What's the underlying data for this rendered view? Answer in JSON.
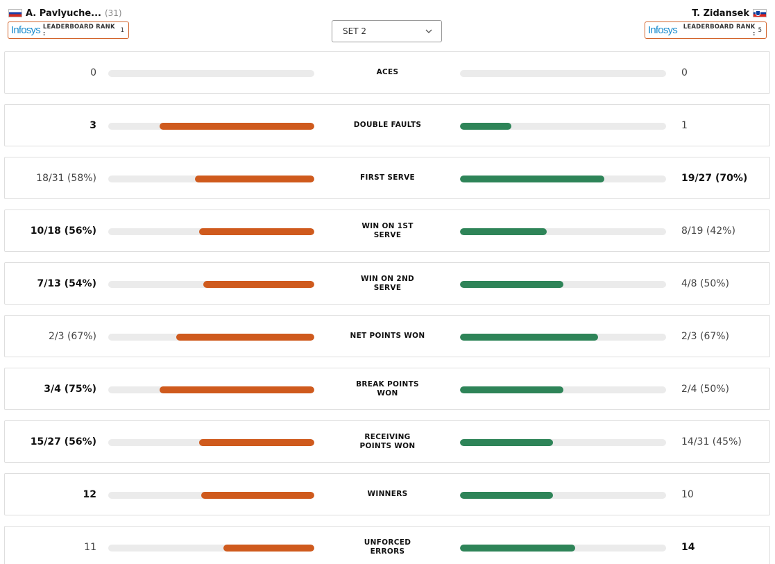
{
  "players": {
    "left": {
      "name": "A. Pavlyuche...",
      "seed": "(31)",
      "flag": "russia-flag",
      "brand": "Infosys",
      "rank_label": "LEADERBOARD RANK :",
      "rank_value": "1"
    },
    "right": {
      "name": "T. Zidansek",
      "flag": "slovenia-flag",
      "brand": "Infosys",
      "rank_label": "LEADERBOARD RANK :",
      "rank_value": "5"
    }
  },
  "set_selector": {
    "selected": "SET 2"
  },
  "colors": {
    "left_bar": "#cf5a1d",
    "right_bar": "#2e8458",
    "track": "#ebebeb",
    "rank_border": "#d2632a",
    "brand": "#1b8ccd"
  },
  "stats": [
    {
      "label": "ACES",
      "left": "0",
      "right": "0",
      "left_fill": 0.0,
      "right_fill": 0.0,
      "bold": "none"
    },
    {
      "label": "DOUBLE FAULTS",
      "left": "3",
      "right": "1",
      "left_fill": 0.75,
      "right_fill": 0.25,
      "bold": "left"
    },
    {
      "label": "FIRST SERVE",
      "left": "18/31 (58%)",
      "right": "19/27 (70%)",
      "left_fill": 0.58,
      "right_fill": 0.7,
      "bold": "right"
    },
    {
      "label": "WIN ON 1ST SERVE",
      "left": "10/18 (56%)",
      "right": "8/19 (42%)",
      "left_fill": 0.56,
      "right_fill": 0.42,
      "bold": "left"
    },
    {
      "label": "WIN ON 2ND SERVE",
      "left": "7/13 (54%)",
      "right": "4/8 (50%)",
      "left_fill": 0.54,
      "right_fill": 0.5,
      "bold": "left"
    },
    {
      "label": "NET POINTS WON",
      "left": "2/3 (67%)",
      "right": "2/3 (67%)",
      "left_fill": 0.67,
      "right_fill": 0.67,
      "bold": "none"
    },
    {
      "label": "BREAK POINTS WON",
      "left": "3/4 (75%)",
      "right": "2/4 (50%)",
      "left_fill": 0.75,
      "right_fill": 0.5,
      "bold": "left"
    },
    {
      "label": "RECEIVING POINTS WON",
      "left": "15/27 (56%)",
      "right": "14/31 (45%)",
      "left_fill": 0.56,
      "right_fill": 0.45,
      "bold": "left"
    },
    {
      "label": "WINNERS",
      "left": "12",
      "right": "10",
      "left_fill": 0.55,
      "right_fill": 0.45,
      "bold": "left"
    },
    {
      "label": "UNFORCED ERRORS",
      "left": "11",
      "right": "14",
      "left_fill": 0.44,
      "right_fill": 0.56,
      "bold": "right"
    }
  ]
}
